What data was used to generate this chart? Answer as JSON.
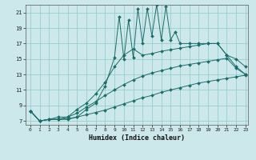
{
  "xlabel": "Humidex (Indice chaleur)",
  "bg_color": "#cce8ea",
  "grid_color": "#8ec8ca",
  "line_color": "#1a6e6a",
  "xmin": -0.5,
  "xmax": 23.3,
  "ymin": 6.5,
  "ymax": 22.0,
  "yticks": [
    7,
    9,
    11,
    13,
    15,
    17,
    19,
    21
  ],
  "xticks": [
    0,
    1,
    2,
    3,
    4,
    5,
    6,
    7,
    8,
    9,
    10,
    11,
    12,
    13,
    14,
    15,
    16,
    17,
    18,
    19,
    20,
    21,
    22,
    23
  ],
  "series1_x": [
    0,
    1,
    2,
    3,
    4,
    5,
    6,
    7,
    8,
    9,
    9.5,
    10,
    10.5,
    11,
    11.5,
    12,
    12.5,
    13,
    13.5,
    14,
    14.5,
    15,
    15.5,
    16,
    17,
    18,
    19,
    20,
    21,
    22,
    23
  ],
  "series1_y": [
    8.3,
    7.0,
    7.2,
    7.2,
    7.2,
    7.5,
    8.5,
    9.3,
    11.5,
    15.2,
    20.5,
    15.0,
    20.0,
    15.2,
    21.5,
    17.0,
    21.5,
    18.0,
    22.0,
    17.5,
    21.8,
    17.5,
    18.5,
    17.0,
    17.0,
    17.0,
    17.0,
    17.0,
    15.5,
    15.0,
    14.0
  ],
  "series2_x": [
    0,
    1,
    2,
    3,
    4,
    5,
    6,
    7,
    8,
    9,
    10,
    11,
    12,
    13,
    14,
    15,
    16,
    17,
    18,
    19,
    20,
    21,
    22,
    23
  ],
  "series2_y": [
    8.3,
    7.0,
    7.2,
    7.2,
    7.5,
    8.5,
    9.3,
    10.5,
    12.0,
    14.0,
    15.5,
    16.3,
    15.5,
    15.7,
    16.0,
    16.2,
    16.4,
    16.6,
    16.8,
    17.0,
    17.0,
    15.5,
    14.0,
    13.0
  ],
  "series3_x": [
    0,
    1,
    2,
    3,
    4,
    5,
    6,
    7,
    8,
    9,
    10,
    11,
    12,
    13,
    14,
    15,
    16,
    17,
    18,
    19,
    20,
    21,
    22,
    23
  ],
  "series3_y": [
    8.3,
    7.0,
    7.2,
    7.5,
    7.5,
    8.0,
    8.8,
    9.5,
    10.3,
    11.0,
    11.7,
    12.3,
    12.8,
    13.2,
    13.5,
    13.8,
    14.1,
    14.3,
    14.5,
    14.7,
    14.9,
    15.1,
    13.8,
    13.0
  ],
  "series4_x": [
    0,
    1,
    2,
    3,
    4,
    5,
    6,
    7,
    8,
    9,
    10,
    11,
    12,
    13,
    14,
    15,
    16,
    17,
    18,
    19,
    20,
    21,
    22,
    23
  ],
  "series4_y": [
    8.3,
    7.0,
    7.2,
    7.2,
    7.3,
    7.5,
    7.8,
    8.1,
    8.4,
    8.8,
    9.2,
    9.6,
    10.0,
    10.3,
    10.7,
    11.0,
    11.3,
    11.6,
    11.9,
    12.1,
    12.3,
    12.5,
    12.7,
    12.9
  ]
}
